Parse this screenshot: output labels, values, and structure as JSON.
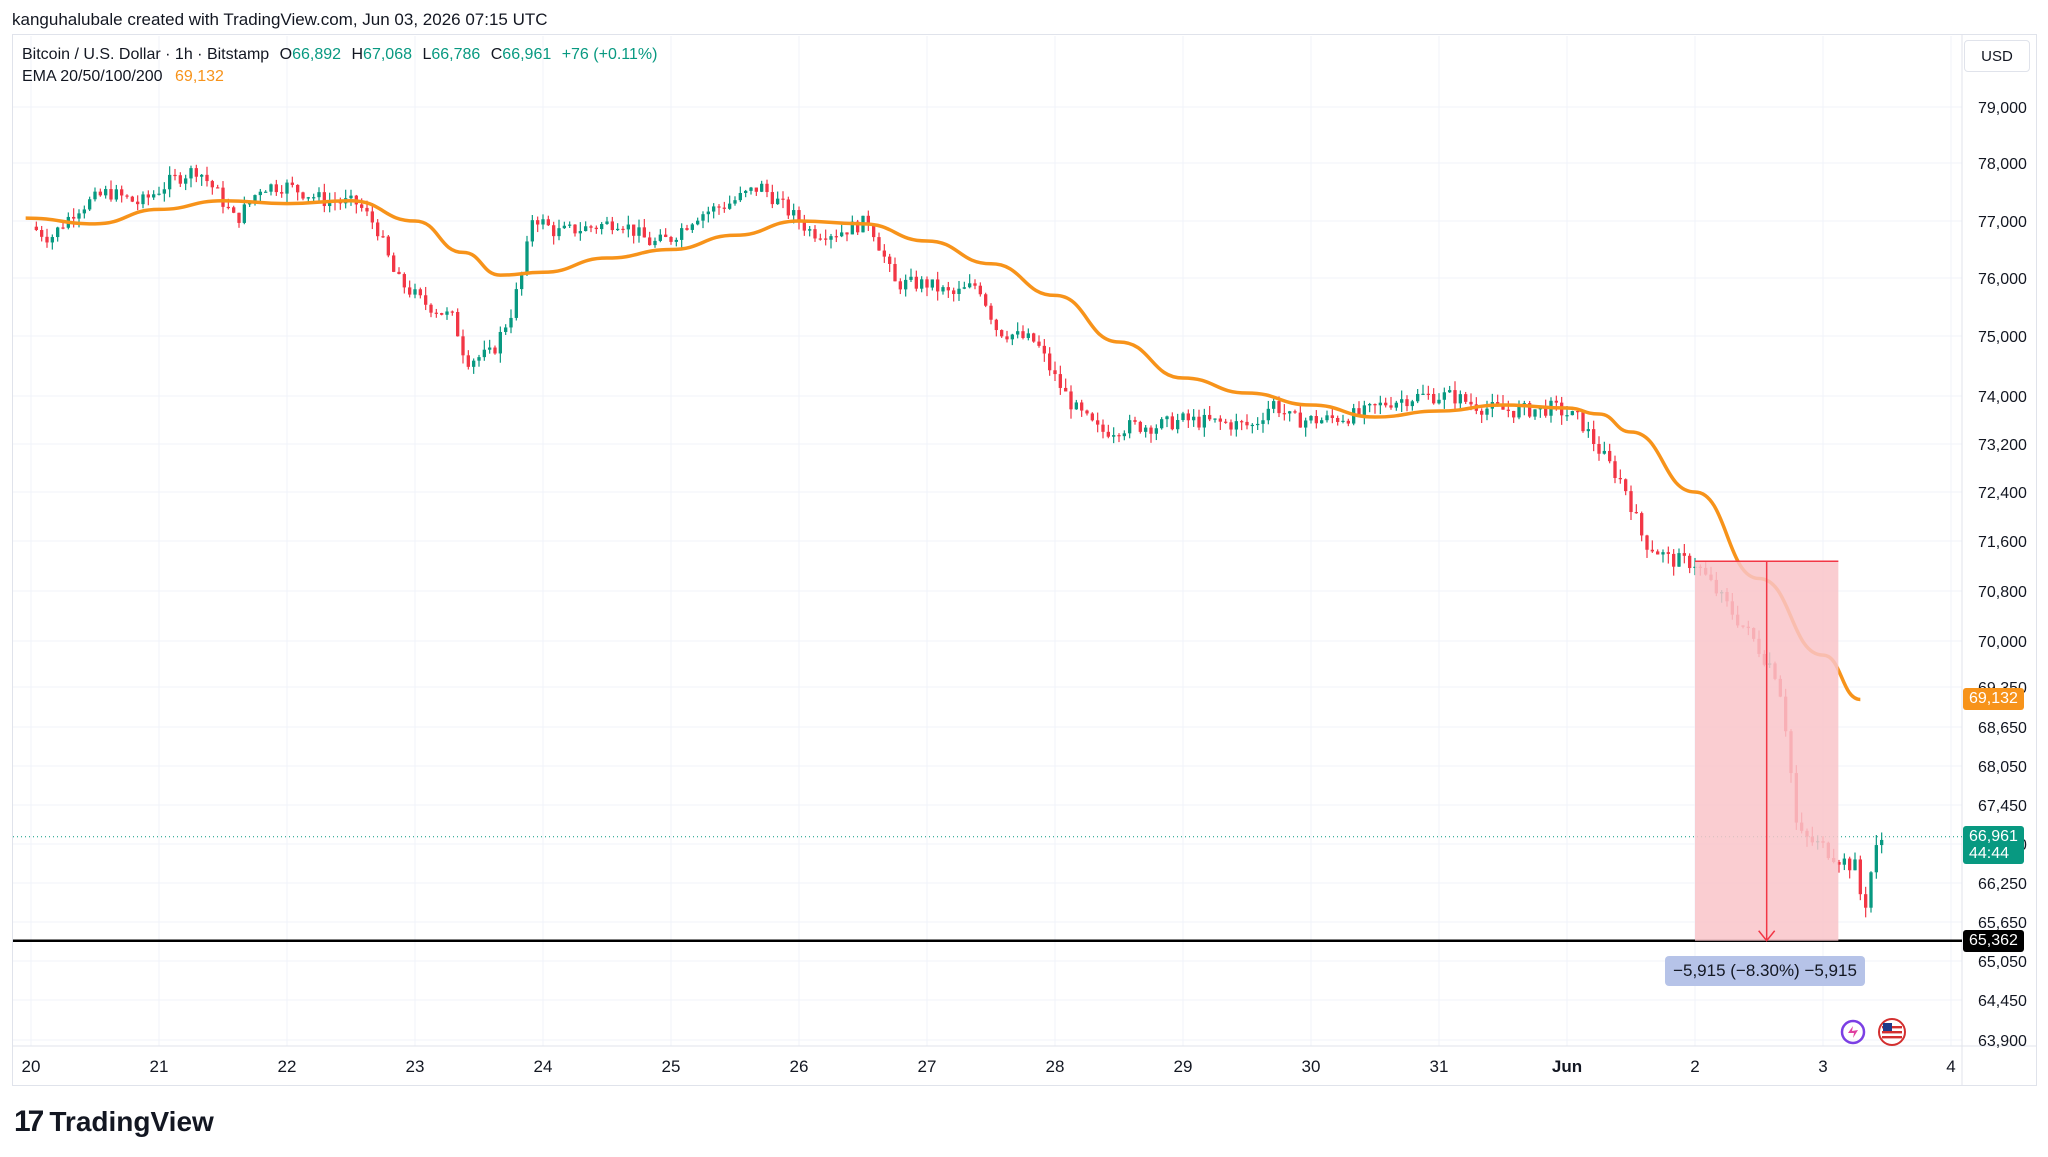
{
  "header": {
    "credit": "kanguhalubale created with TradingView.com, Jun 03, 2026 07:15 UTC",
    "symbol_line": "Bitcoin / U.S. Dollar · 1h · Bitstamp",
    "ohlc": {
      "o_label": "O",
      "o_value": "66,892",
      "h_label": "H",
      "h_value": "67,068",
      "l_label": "L",
      "l_value": "66,786",
      "c_label": "C",
      "c_value": "66,961",
      "change": "+76 (+0.11%)"
    },
    "ema_label": "EMA 20/50/100/200",
    "ema_value": "69,132",
    "currency": "USD"
  },
  "colors": {
    "up": "#089981",
    "down": "#f23645",
    "ema": "#f7931a",
    "measure_fill": "#f9c4c9",
    "measure_line": "#f23645",
    "support": "#000000"
  },
  "chart_data": {
    "type": "candlestick",
    "title": "Bitcoin / U.S. Dollar · 1h · Bitstamp",
    "timeframe": "1h",
    "y_axis_ticks": [
      79000,
      78000,
      77000,
      76000,
      75000,
      74000,
      73200,
      72400,
      71600,
      70800,
      70000,
      69350,
      68650,
      68050,
      67450,
      66850,
      66250,
      65650,
      65050,
      64450,
      63900
    ],
    "y_axis_labels": [
      "79,000",
      "78,000",
      "77,000",
      "76,000",
      "75,000",
      "74,000",
      "73,200",
      "72,400",
      "71,600",
      "70,800",
      "70,000",
      "69,350",
      "68,650",
      "68,050",
      "67,450",
      "66,850",
      "66,250",
      "65,650",
      "65,050",
      "64,450",
      "63,900"
    ],
    "x_axis_labels": [
      "20",
      "21",
      "22",
      "23",
      "24",
      "25",
      "26",
      "27",
      "28",
      "29",
      "30",
      "31",
      "Jun",
      "2",
      "3",
      "4"
    ],
    "ema_series": {
      "name": "EMA",
      "points": [
        [
          "May 19 23:00",
          77050
        ],
        [
          "May 20 12:00",
          76950
        ],
        [
          "May 21 00:00",
          77200
        ],
        [
          "May 21 12:00",
          77350
        ],
        [
          "May 22 00:00",
          77300
        ],
        [
          "May 22 12:00",
          77350
        ],
        [
          "May 23 00:00",
          77000
        ],
        [
          "May 23 09:00",
          76450
        ],
        [
          "May 23 16:00",
          76050
        ],
        [
          "May 24 00:00",
          76100
        ],
        [
          "May 24 12:00",
          76350
        ],
        [
          "May 25 00:00",
          76500
        ],
        [
          "May 25 12:00",
          76750
        ],
        [
          "May 26 00:00",
          77000
        ],
        [
          "May 26 12:00",
          76950
        ],
        [
          "May 27 00:00",
          76650
        ],
        [
          "May 27 12:00",
          76250
        ],
        [
          "May 28 00:00",
          75700
        ],
        [
          "May 28 12:00",
          74900
        ],
        [
          "May 29 00:00",
          74300
        ],
        [
          "May 29 12:00",
          74050
        ],
        [
          "May 30 00:00",
          73850
        ],
        [
          "May 30 12:00",
          73650
        ],
        [
          "May 31 00:00",
          73750
        ],
        [
          "May 31 12:00",
          73850
        ],
        [
          "Jun 01 00:00",
          73800
        ],
        [
          "Jun 01 06:00",
          73700
        ],
        [
          "Jun 01 12:00",
          73400
        ],
        [
          "Jun 02 00:00",
          72400
        ],
        [
          "Jun 02 12:00",
          71000
        ],
        [
          "Jun 03 00:00",
          69800
        ],
        [
          "Jun 03 07:00",
          69132
        ]
      ]
    },
    "candles_ohlc_approx": "hourly candles from May 19 to Jun 03; range ~74,300-78,000 May 20-26, decline to ~72,600-74,000 May 28-Jun 1, sharp drop to low ~65,700 on Jun 3, last close 66,961",
    "last_price": 66961,
    "last_price_label": "66,961",
    "countdown": "44:44",
    "ema_last_label": "69,132",
    "support_level": 65362,
    "support_label": "65,362",
    "measure": {
      "from_price": 71277,
      "to_price": 65362,
      "label": "−5,915 (−8.30%) −5,915"
    }
  }
}
